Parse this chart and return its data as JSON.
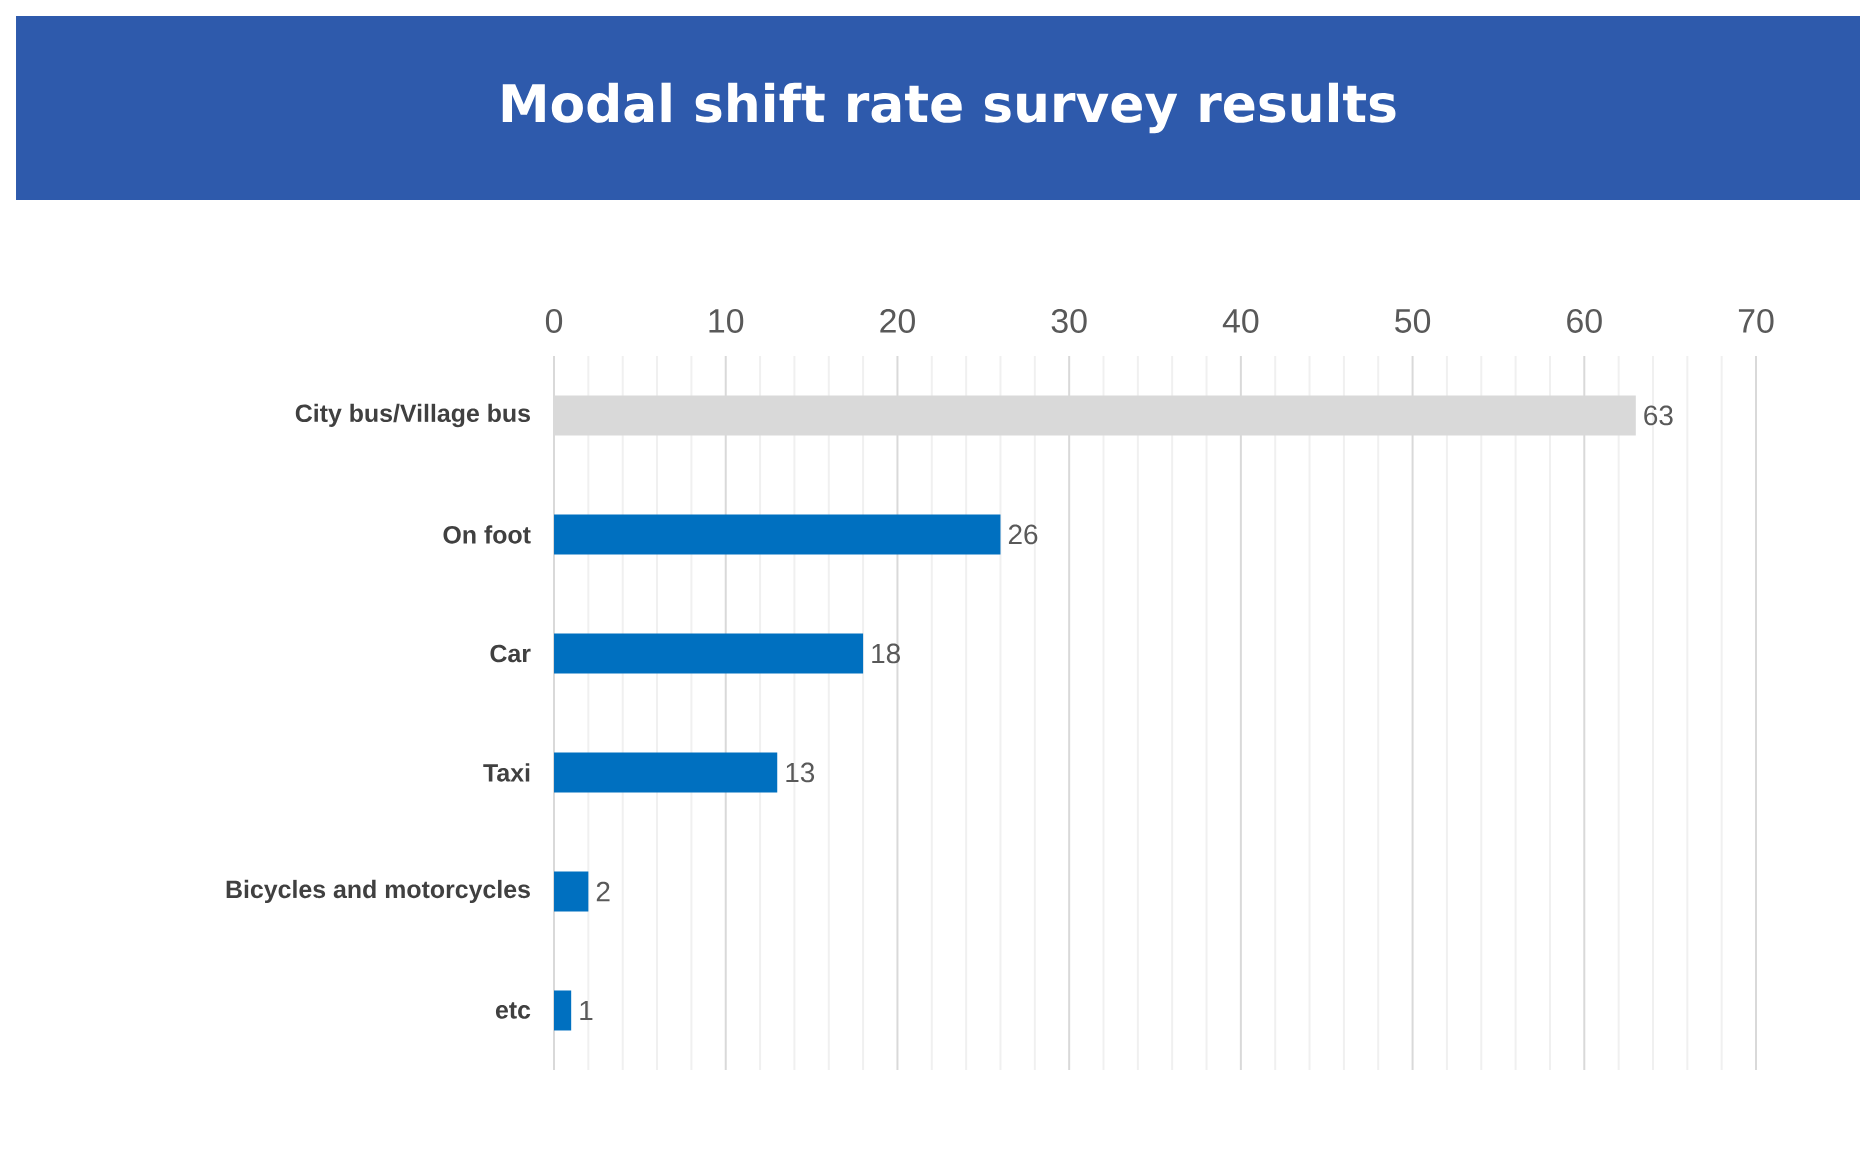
{
  "chart_data": {
    "type": "bar",
    "orientation": "horizontal",
    "title": "Modal shift rate survey results",
    "categories": [
      "City bus/Village bus",
      "On foot",
      "Car",
      "Taxi",
      "Bicycles and motorcycles",
      "etc"
    ],
    "values": [
      63,
      26,
      18,
      13,
      2,
      1
    ],
    "colors": [
      "#d9d9d9",
      "#0070c0",
      "#0070c0",
      "#0070c0",
      "#0070c0",
      "#0070c0"
    ],
    "xlim": [
      0,
      70
    ],
    "xticks": [
      0,
      10,
      20,
      30,
      40,
      50,
      60,
      70
    ],
    "grid": "x",
    "data_labels": true
  }
}
